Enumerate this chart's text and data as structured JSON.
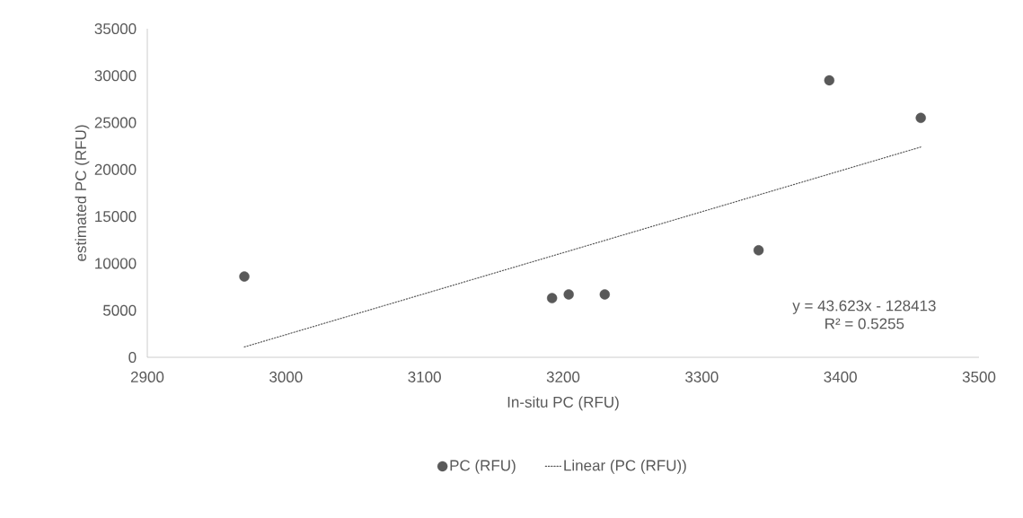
{
  "chart_data": {
    "type": "scatter",
    "xlabel": "In-situ PC (RFU)",
    "ylabel": "estimated PC (RFU)",
    "xlim": [
      2900,
      3500
    ],
    "xticks": [
      2900,
      3000,
      3100,
      3200,
      3300,
      3400,
      3500
    ],
    "ylim": [
      0,
      35000
    ],
    "yticks": [
      0,
      5000,
      10000,
      15000,
      20000,
      25000,
      30000,
      35000
    ],
    "grid": false,
    "legend": "bottom",
    "annotations": [
      "y = 43.623x - 128413",
      "R² = 0.5255"
    ],
    "series": [
      {
        "name": "PC (RFU)",
        "marker": "circle",
        "color": "#595959",
        "x": [
          2970,
          3192,
          3204,
          3230,
          3341,
          3392,
          3458
        ],
        "values": [
          8600,
          6300,
          6700,
          6700,
          11400,
          29500,
          25500
        ]
      },
      {
        "name": "Linear (PC (RFU))",
        "type": "line",
        "marker": "none",
        "line_style": "dotted",
        "color": "#595959",
        "x": [
          2970,
          3458
        ],
        "values": [
          1100,
          22400
        ]
      }
    ]
  }
}
